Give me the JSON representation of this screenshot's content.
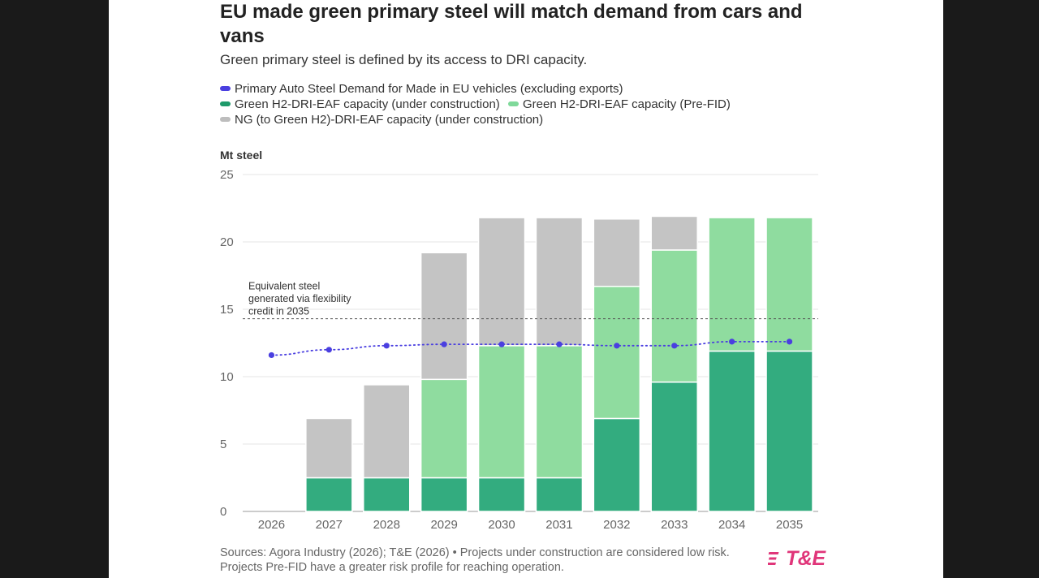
{
  "title": "EU made green primary steel will match demand from cars and vans",
  "subtitle": "Green primary steel is defined by its access to DRI capacity.",
  "legend": [
    {
      "label": "Primary Auto Steel Demand for Made in EU vehicles (excluding exports)",
      "color": "#4a3fe0"
    },
    {
      "label": "Green H2-DRI-EAF capacity (under construction)",
      "color": "#1e9a6a"
    },
    {
      "label": "Green H2-DRI-EAF capacity (Pre-FID)",
      "color": "#7fd99a"
    },
    {
      "label": "NG (to Green H2)-DRI-EAF capacity (under construction)",
      "color": "#bdbdbd"
    }
  ],
  "chart_data": {
    "type": "bar",
    "stacked": true,
    "ylabel": "Mt steel",
    "ylim": [
      0,
      25
    ],
    "yticks": [
      "0",
      "5",
      "10",
      "15",
      "20",
      "25"
    ],
    "categories": [
      "2026",
      "2027",
      "2028",
      "2029",
      "2030",
      "2031",
      "2032",
      "2033",
      "2034",
      "2035"
    ],
    "series": [
      {
        "name": "Green H2-DRI-EAF capacity (under construction)",
        "color": "#33ac7f",
        "values": [
          0,
          2.5,
          2.5,
          2.5,
          2.5,
          2.5,
          6.9,
          9.6,
          11.9,
          11.9
        ]
      },
      {
        "name": "Green H2-DRI-EAF capacity (Pre-FID)",
        "color": "#8fdc9f",
        "values": [
          0,
          0,
          0,
          7.3,
          9.8,
          9.8,
          9.8,
          9.8,
          9.9,
          9.9
        ]
      },
      {
        "name": "NG (to Green H2)-DRI-EAF capacity (under construction)",
        "color": "#c4c4c4",
        "values": [
          0,
          4.4,
          6.9,
          9.4,
          9.5,
          9.5,
          5.0,
          2.5,
          0,
          0
        ]
      }
    ],
    "line": {
      "name": "Primary Auto Steel Demand for Made in EU vehicles (excluding exports)",
      "color": "#4a3fe0",
      "values": [
        11.6,
        12.0,
        12.3,
        12.4,
        12.4,
        12.4,
        12.3,
        12.3,
        12.6,
        12.6
      ]
    },
    "reference_line": {
      "value": 14.3,
      "annotation": [
        "Equivalent steel",
        "generated via flexibility",
        "credit in 2035"
      ]
    },
    "grid": true
  },
  "footer": {
    "line1": "Sources: Agora Industry (2026); T&E (2026) • Projects under construction are considered low risk.",
    "line2": "Projects Pre-FID have a greater risk profile for reaching operation."
  },
  "logo_text": "T&E"
}
